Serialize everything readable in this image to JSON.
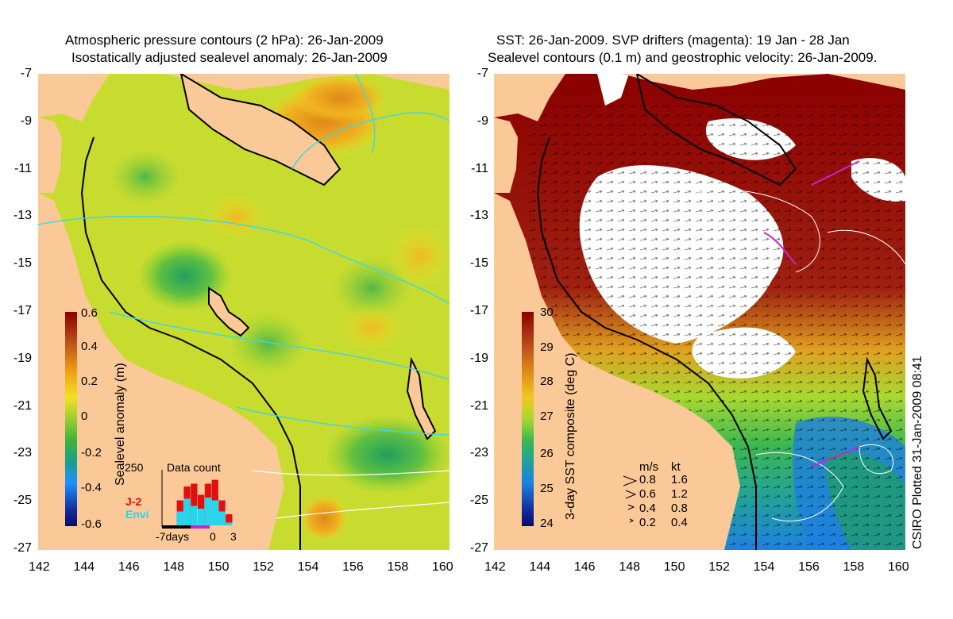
{
  "left_panel": {
    "title_line1": "Atmospheric pressure contours (2 hPa): 26-Jan-2009",
    "title_line2": "Isostatically adjusted sealevel anomaly: 26-Jan-2009",
    "colorbar": {
      "label": "Sealevel anomaly (m)",
      "ticks": [
        "0.6",
        "0.4",
        "0.2",
        "0",
        "-0.2",
        "-0.4",
        "-0.6"
      ],
      "colors": [
        "#8b0000",
        "#c0541a",
        "#f0a018",
        "#f5e020",
        "#9acd32",
        "#3cb33c",
        "#19a090",
        "#1e90ff",
        "#1030a0",
        "#0a0a6e"
      ]
    },
    "data_count": {
      "title": "Data count",
      "y_label": "250",
      "series_j2": "J-2",
      "series_envi": "Envi",
      "x_labels": [
        "-7days",
        "0",
        "3"
      ],
      "j2_values": [
        0,
        0,
        0.45,
        0.7,
        0.75,
        0.55,
        0.75,
        0.82,
        0.45,
        0.2
      ],
      "envi_values": [
        0,
        0,
        0.25,
        0.48,
        0.35,
        0.3,
        0.5,
        0.45,
        0.25,
        0.05
      ]
    }
  },
  "right_panel": {
    "title_line1": "SST: 26-Jan-2009. SVP drifters (magenta): 19 Jan - 28 Jan",
    "title_line2": "Sealevel contours (0.1 m) and geostrophic velocity: 26-Jan-2009.",
    "colorbar": {
      "label": "3-day SST composite (deg C)",
      "ticks": [
        "30",
        "29",
        "28",
        "27",
        "26",
        "25",
        "24"
      ],
      "colors": [
        "#8b0000",
        "#b8481a",
        "#e08a18",
        "#f0c820",
        "#a8d830",
        "#3cb850",
        "#20a0a0",
        "#1e80e0",
        "#1030a0",
        "#0a0a6e"
      ]
    },
    "velocity_legend": {
      "header_ms": "m/s",
      "header_kt": "kt",
      "rows": [
        {
          "ms": "0.8",
          "kt": "1.6"
        },
        {
          "ms": "0.6",
          "kt": "1.2"
        },
        {
          "ms": "0.4",
          "kt": "0.8"
        },
        {
          "ms": "0.2",
          "kt": "0.4"
        }
      ]
    },
    "credit": "CSIRO Plotted 31-Jan-2009 08:41"
  },
  "axes": {
    "y_ticks": [
      "-7",
      "-9",
      "-11",
      "-13",
      "-15",
      "-17",
      "-19",
      "-21",
      "-23",
      "-25",
      "-27"
    ],
    "x_ticks": [
      "142",
      "144",
      "146",
      "148",
      "150",
      "152",
      "154",
      "156",
      "158",
      "160"
    ]
  },
  "colors": {
    "land": "#fbc898",
    "ocean_mid": "#b8d830",
    "white_cloud": "#ffffff",
    "dark_red": "#8b0000",
    "j2_bar": "#e01010",
    "envi_bar": "#20d8f0",
    "drifter": "#d020d0",
    "pressure_contour": "#40d8e0"
  }
}
